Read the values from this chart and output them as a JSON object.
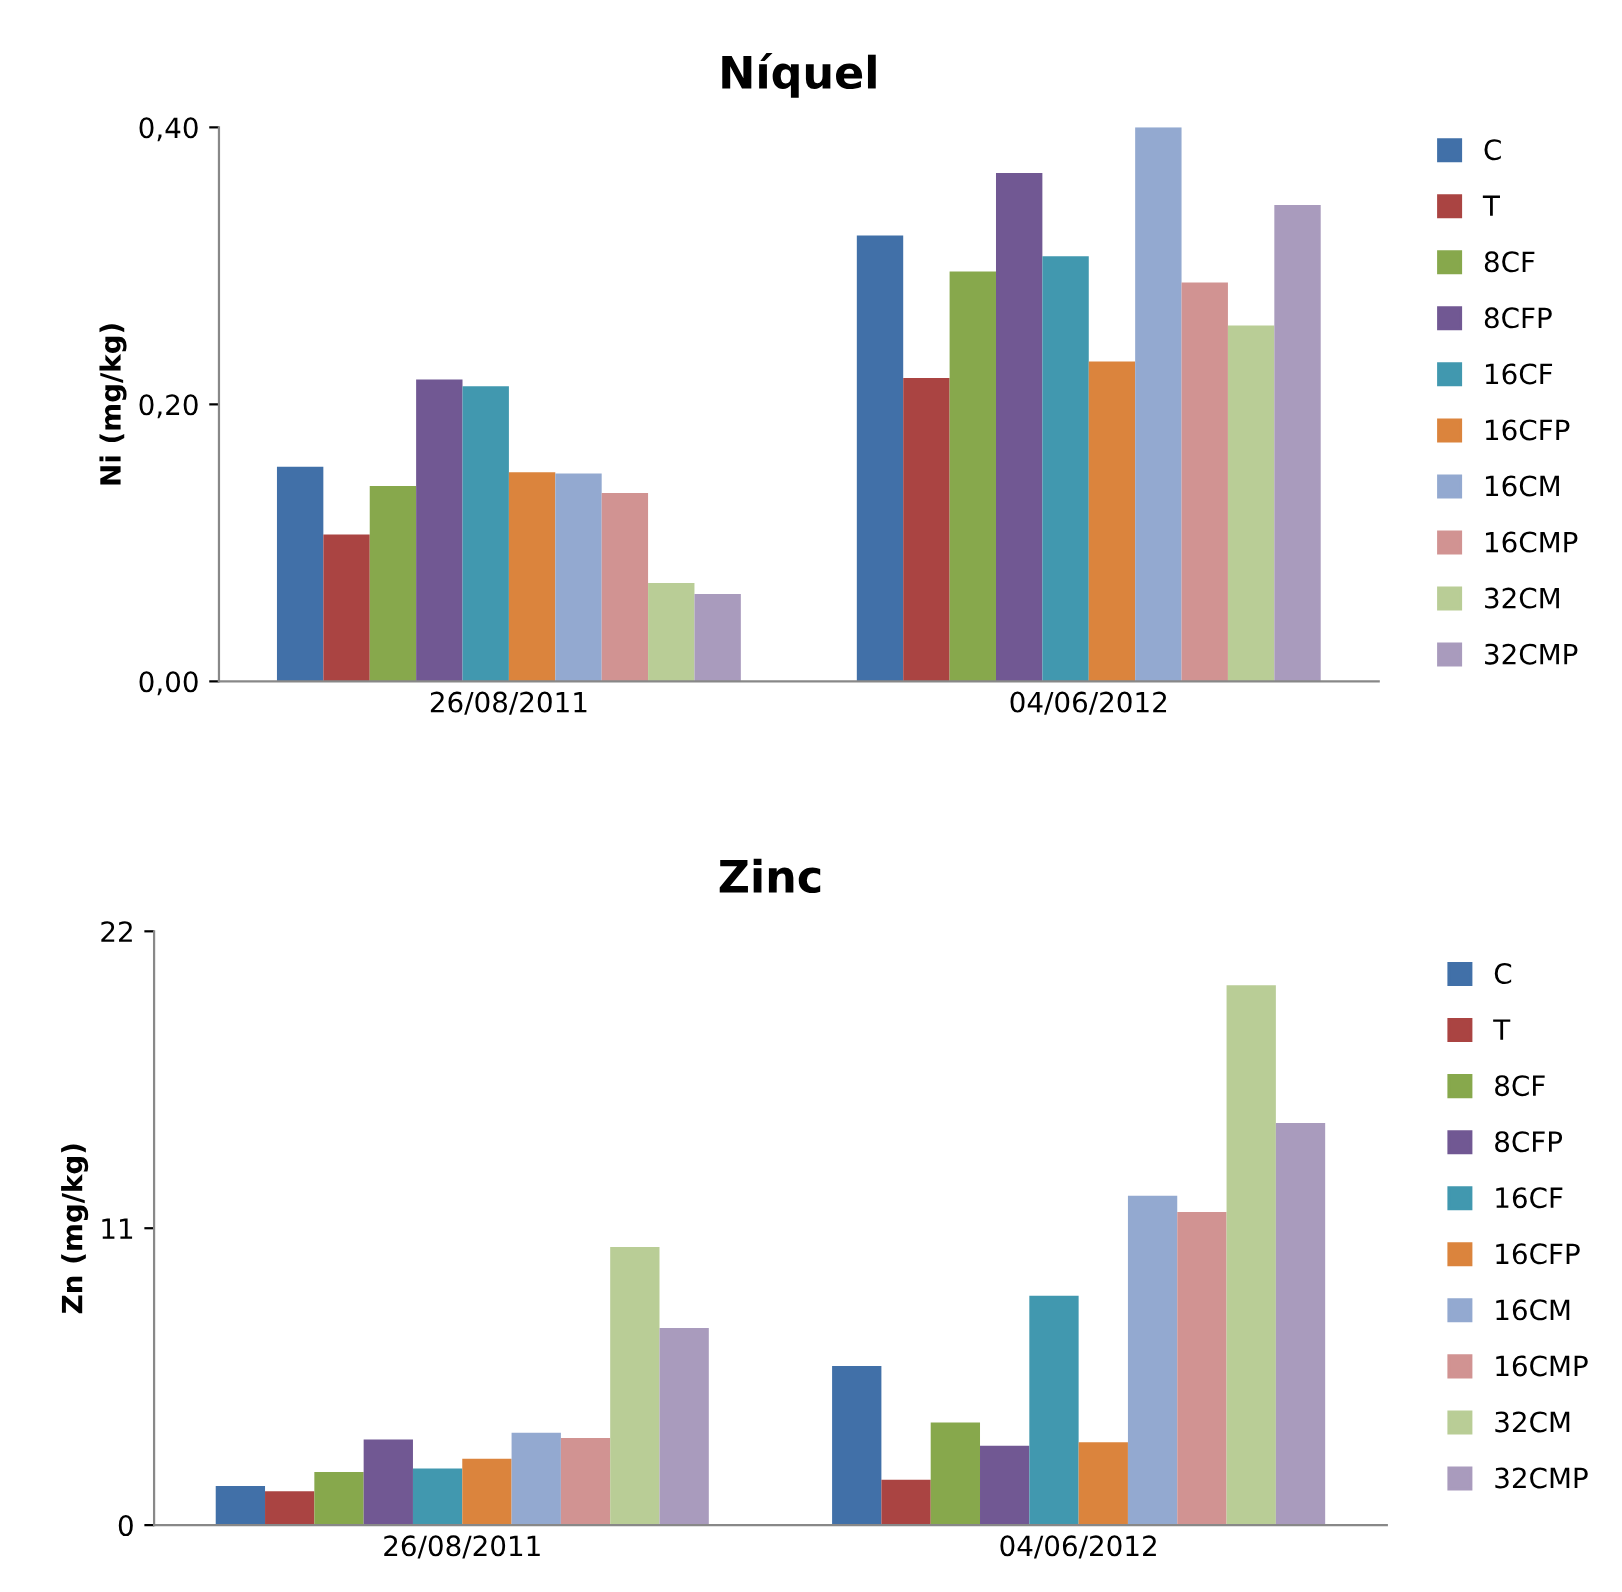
{
  "chart_data": [
    {
      "type": "bar",
      "title": "Níquel",
      "ylabel": "Ni (mg/kg)",
      "categories": [
        "26/08/2011",
        "04/06/2012"
      ],
      "series": [
        {
          "name": "C",
          "color": "#4170a8",
          "values": [
            0.155,
            0.322
          ]
        },
        {
          "name": "T",
          "color": "#aa4442",
          "values": [
            0.106,
            0.219
          ]
        },
        {
          "name": "8CF",
          "color": "#87a84c",
          "values": [
            0.141,
            0.296
          ]
        },
        {
          "name": "8CFP",
          "color": "#715893",
          "values": [
            0.218,
            0.367
          ]
        },
        {
          "name": "16CF",
          "color": "#4198af",
          "values": [
            0.213,
            0.307
          ]
        },
        {
          "name": "16CFP",
          "color": "#db843d",
          "values": [
            0.151,
            0.231
          ]
        },
        {
          "name": "16CM",
          "color": "#93a9d0",
          "values": [
            0.15,
            0.4
          ]
        },
        {
          "name": "16CMP",
          "color": "#d19392",
          "values": [
            0.136,
            0.288
          ]
        },
        {
          "name": "32CM",
          "color": "#b9cd96",
          "values": [
            0.071,
            0.257
          ]
        },
        {
          "name": "32CMP",
          "color": "#a99bbd",
          "values": [
            0.063,
            0.344
          ]
        }
      ],
      "ylim": [
        0,
        0.4
      ],
      "yticks": [
        {
          "value": 0,
          "label": "0,00"
        },
        {
          "value": 0.2,
          "label": "0,20"
        },
        {
          "value": 0.4,
          "label": "0,40"
        }
      ],
      "grid": false,
      "legend": "right"
    },
    {
      "type": "bar",
      "title": "Zinc",
      "ylabel": "Zn (mg/kg)",
      "categories": [
        "26/08/2011",
        "04/06/2012"
      ],
      "series": [
        {
          "name": "C",
          "color": "#4170a8",
          "values": [
            1.45,
            5.9
          ]
        },
        {
          "name": "T",
          "color": "#aa4442",
          "values": [
            1.26,
            1.68
          ]
        },
        {
          "name": "8CF",
          "color": "#87a84c",
          "values": [
            1.97,
            3.8
          ]
        },
        {
          "name": "8CFP",
          "color": "#715893",
          "values": [
            3.17,
            2.94
          ]
        },
        {
          "name": "16CF",
          "color": "#4198af",
          "values": [
            2.1,
            8.5
          ]
        },
        {
          "name": "16CFP",
          "color": "#db843d",
          "values": [
            2.46,
            3.07
          ]
        },
        {
          "name": "16CM",
          "color": "#93a9d0",
          "values": [
            3.42,
            12.2
          ]
        },
        {
          "name": "16CMP",
          "color": "#d19392",
          "values": [
            3.23,
            11.6
          ]
        },
        {
          "name": "32CM",
          "color": "#b9cd96",
          "values": [
            10.3,
            20.0
          ]
        },
        {
          "name": "32CMP",
          "color": "#a99bbd",
          "values": [
            7.3,
            14.9
          ]
        }
      ],
      "ylim": [
        0,
        22
      ],
      "yticks": [
        0,
        11,
        22
      ],
      "grid": false,
      "legend": "right"
    }
  ]
}
